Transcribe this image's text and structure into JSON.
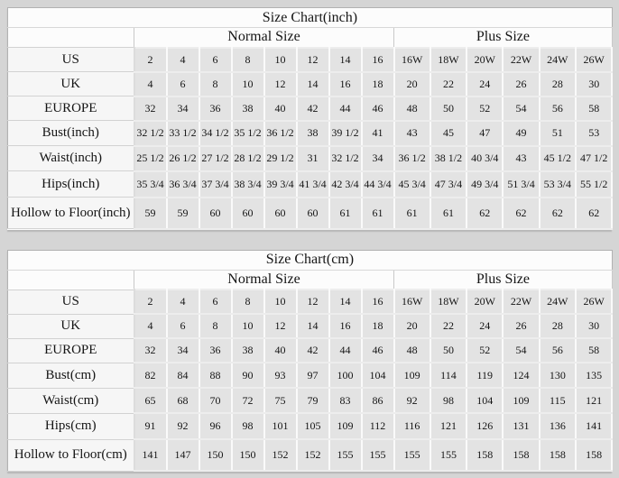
{
  "page": {
    "background": "#d5d5d5",
    "label_cell_bg": "#f6f6f6",
    "data_cell_bg": "#e3e3e3",
    "header_bg": "#fcfcfc",
    "text_color": "#151515"
  },
  "chart_data": [
    {
      "type": "table",
      "title": "Size Chart(inch)",
      "group_normal": "Normal Size",
      "group_plus": "Plus Size",
      "rows": [
        {
          "label": "US",
          "normal": [
            "2",
            "4",
            "6",
            "8",
            "10",
            "12",
            "14",
            "16"
          ],
          "plus": [
            "16W",
            "18W",
            "20W",
            "22W",
            "24W",
            "26W"
          ]
        },
        {
          "label": "UK",
          "normal": [
            "4",
            "6",
            "8",
            "10",
            "12",
            "14",
            "16",
            "18"
          ],
          "plus": [
            "20",
            "22",
            "24",
            "26",
            "28",
            "30"
          ]
        },
        {
          "label": "EUROPE",
          "normal": [
            "32",
            "34",
            "36",
            "38",
            "40",
            "42",
            "44",
            "46"
          ],
          "plus": [
            "48",
            "50",
            "52",
            "54",
            "56",
            "58"
          ]
        },
        {
          "label": "Bust(inch)",
          "normal": [
            "32 1/2",
            "33 1/2",
            "34 1/2",
            "35 1/2",
            "36 1/2",
            "38",
            "39 1/2",
            "41"
          ],
          "plus": [
            "43",
            "45",
            "47",
            "49",
            "51",
            "53"
          ]
        },
        {
          "label": "Waist(inch)",
          "normal": [
            "25 1/2",
            "26 1/2",
            "27 1/2",
            "28 1/2",
            "29 1/2",
            "31",
            "32 1/2",
            "34"
          ],
          "plus": [
            "36 1/2",
            "38 1/2",
            "40 3/4",
            "43",
            "45 1/2",
            "47 1/2"
          ]
        },
        {
          "label": "Hips(inch)",
          "normal": [
            "35 3/4",
            "36 3/4",
            "37 3/4",
            "38 3/4",
            "39 3/4",
            "41 3/4",
            "42 3/4",
            "44 3/4"
          ],
          "plus": [
            "45 3/4",
            "47 3/4",
            "49 3/4",
            "51 3/4",
            "53 3/4",
            "55 1/2"
          ]
        },
        {
          "label": "Hollow to Floor(inch)",
          "normal": [
            "59",
            "59",
            "60",
            "60",
            "60",
            "60",
            "61",
            "61"
          ],
          "plus": [
            "61",
            "61",
            "62",
            "62",
            "62",
            "62"
          ]
        }
      ]
    },
    {
      "type": "table",
      "title": "Size Chart(cm)",
      "group_normal": "Normal Size",
      "group_plus": "Plus Size",
      "rows": [
        {
          "label": "US",
          "normal": [
            "2",
            "4",
            "6",
            "8",
            "10",
            "12",
            "14",
            "16"
          ],
          "plus": [
            "16W",
            "18W",
            "20W",
            "22W",
            "24W",
            "26W"
          ]
        },
        {
          "label": "UK",
          "normal": [
            "4",
            "6",
            "8",
            "10",
            "12",
            "14",
            "16",
            "18"
          ],
          "plus": [
            "20",
            "22",
            "24",
            "26",
            "28",
            "30"
          ]
        },
        {
          "label": "EUROPE",
          "normal": [
            "32",
            "34",
            "36",
            "38",
            "40",
            "42",
            "44",
            "46"
          ],
          "plus": [
            "48",
            "50",
            "52",
            "54",
            "56",
            "58"
          ]
        },
        {
          "label": "Bust(cm)",
          "normal": [
            "82",
            "84",
            "88",
            "90",
            "93",
            "97",
            "100",
            "104"
          ],
          "plus": [
            "109",
            "114",
            "119",
            "124",
            "130",
            "135"
          ]
        },
        {
          "label": "Waist(cm)",
          "normal": [
            "65",
            "68",
            "70",
            "72",
            "75",
            "79",
            "83",
            "86"
          ],
          "plus": [
            "92",
            "98",
            "104",
            "109",
            "115",
            "121"
          ]
        },
        {
          "label": "Hips(cm)",
          "normal": [
            "91",
            "92",
            "96",
            "98",
            "101",
            "105",
            "109",
            "112"
          ],
          "plus": [
            "116",
            "121",
            "126",
            "131",
            "136",
            "141"
          ]
        },
        {
          "label": "Hollow to Floor(cm)",
          "normal": [
            "141",
            "147",
            "150",
            "150",
            "152",
            "152",
            "155",
            "155"
          ],
          "plus": [
            "155",
            "155",
            "158",
            "158",
            "158",
            "158"
          ]
        }
      ]
    }
  ]
}
